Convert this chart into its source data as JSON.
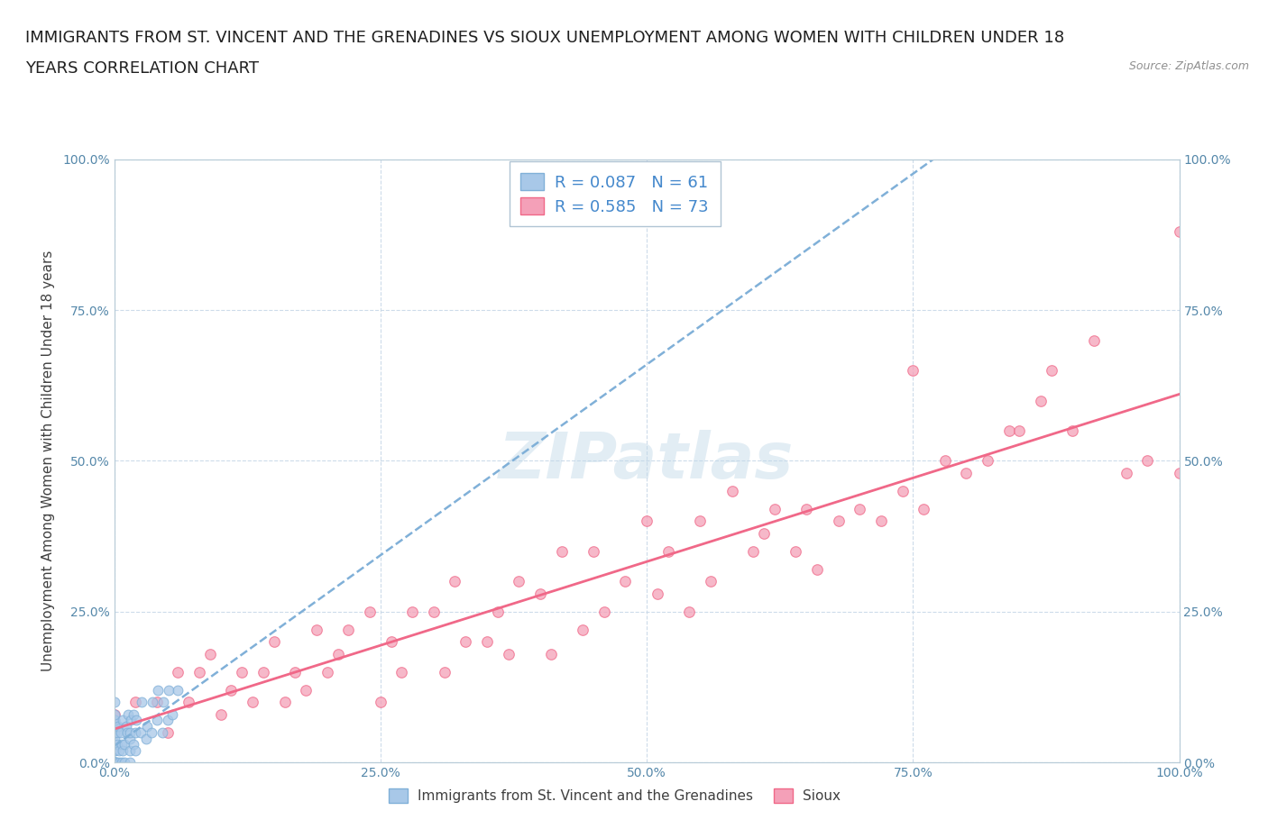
{
  "title_line1": "IMMIGRANTS FROM ST. VINCENT AND THE GRENADINES VS SIOUX UNEMPLOYMENT AMONG WOMEN WITH CHILDREN UNDER 18",
  "title_line2": "YEARS CORRELATION CHART",
  "source_text": "Source: ZipAtlas.com",
  "ylabel": "Unemployment Among Women with Children Under 18 years",
  "xlim": [
    0.0,
    1.0
  ],
  "ylim": [
    0.0,
    1.0
  ],
  "xtick_labels": [
    "0.0%",
    "25.0%",
    "50.0%",
    "75.0%",
    "100.0%"
  ],
  "xtick_positions": [
    0.0,
    0.25,
    0.5,
    0.75,
    1.0
  ],
  "ytick_labels": [
    "0.0%",
    "25.0%",
    "50.0%",
    "75.0%",
    "100.0%"
  ],
  "ytick_positions": [
    0.0,
    0.25,
    0.5,
    0.75,
    1.0
  ],
  "blue_scatter_color": "#a8c8e8",
  "pink_scatter_color": "#f4a0b8",
  "blue_line_color": "#80b0d8",
  "pink_line_color": "#f06888",
  "blue_R": 0.087,
  "blue_N": 61,
  "pink_R": 0.585,
  "pink_N": 73,
  "legend_label_blue": "Immigrants from St. Vincent and the Grenadines",
  "legend_label_pink": "Sioux",
  "watermark": "ZIPatlas",
  "background_color": "#ffffff",
  "grid_color": "#c8d8e8",
  "title_fontsize": 13,
  "axis_label_fontsize": 11,
  "tick_fontsize": 10,
  "blue_scatter_x": [
    0.0,
    0.0,
    0.0,
    0.0,
    0.0,
    0.0,
    0.0,
    0.0,
    0.0,
    0.0,
    0.0,
    0.0,
    0.0,
    0.0,
    0.0,
    0.0,
    0.0,
    0.0,
    0.0,
    0.0,
    0.002,
    0.002,
    0.003,
    0.003,
    0.004,
    0.005,
    0.005,
    0.006,
    0.007,
    0.007,
    0.008,
    0.008,
    0.01,
    0.01,
    0.011,
    0.012,
    0.013,
    0.015,
    0.015,
    0.015,
    0.015,
    0.016,
    0.018,
    0.018,
    0.02,
    0.02,
    0.021,
    0.025,
    0.026,
    0.03,
    0.031,
    0.035,
    0.036,
    0.04,
    0.041,
    0.045,
    0.046,
    0.05,
    0.051,
    0.055,
    0.06
  ],
  "blue_scatter_y": [
    0.0,
    0.0,
    0.0,
    0.0,
    0.0,
    0.0,
    0.0,
    0.0,
    0.02,
    0.02,
    0.03,
    0.04,
    0.05,
    0.05,
    0.06,
    0.06,
    0.07,
    0.07,
    0.08,
    0.1,
    0.0,
    0.0,
    0.03,
    0.05,
    0.06,
    0.0,
    0.02,
    0.05,
    0.0,
    0.03,
    0.02,
    0.07,
    0.0,
    0.03,
    0.06,
    0.05,
    0.08,
    0.0,
    0.02,
    0.04,
    0.05,
    0.07,
    0.03,
    0.08,
    0.02,
    0.05,
    0.07,
    0.05,
    0.1,
    0.04,
    0.06,
    0.05,
    0.1,
    0.07,
    0.12,
    0.05,
    0.1,
    0.07,
    0.12,
    0.08,
    0.12
  ],
  "pink_scatter_x": [
    0.0,
    0.02,
    0.04,
    0.05,
    0.06,
    0.07,
    0.08,
    0.09,
    0.1,
    0.11,
    0.12,
    0.13,
    0.14,
    0.15,
    0.16,
    0.17,
    0.18,
    0.19,
    0.2,
    0.21,
    0.22,
    0.24,
    0.25,
    0.26,
    0.27,
    0.28,
    0.3,
    0.31,
    0.32,
    0.33,
    0.35,
    0.36,
    0.37,
    0.38,
    0.4,
    0.41,
    0.42,
    0.44,
    0.45,
    0.46,
    0.48,
    0.5,
    0.51,
    0.52,
    0.54,
    0.55,
    0.56,
    0.58,
    0.6,
    0.61,
    0.62,
    0.64,
    0.65,
    0.66,
    0.68,
    0.7,
    0.72,
    0.74,
    0.75,
    0.76,
    0.78,
    0.8,
    0.82,
    0.84,
    0.85,
    0.87,
    0.88,
    0.9,
    0.92,
    0.95,
    0.97,
    1.0,
    1.0
  ],
  "pink_scatter_y": [
    0.08,
    0.1,
    0.1,
    0.05,
    0.15,
    0.1,
    0.15,
    0.18,
    0.08,
    0.12,
    0.15,
    0.1,
    0.15,
    0.2,
    0.1,
    0.15,
    0.12,
    0.22,
    0.15,
    0.18,
    0.22,
    0.25,
    0.1,
    0.2,
    0.15,
    0.25,
    0.25,
    0.15,
    0.3,
    0.2,
    0.2,
    0.25,
    0.18,
    0.3,
    0.28,
    0.18,
    0.35,
    0.22,
    0.35,
    0.25,
    0.3,
    0.4,
    0.28,
    0.35,
    0.25,
    0.4,
    0.3,
    0.45,
    0.35,
    0.38,
    0.42,
    0.35,
    0.42,
    0.32,
    0.4,
    0.42,
    0.4,
    0.45,
    0.65,
    0.42,
    0.5,
    0.48,
    0.5,
    0.55,
    0.55,
    0.6,
    0.65,
    0.55,
    0.7,
    0.48,
    0.5,
    0.48,
    0.88
  ],
  "blue_line_start_x": 0.0,
  "blue_line_end_x": 1.0,
  "pink_line_start_x": 0.0,
  "pink_line_end_x": 1.0
}
